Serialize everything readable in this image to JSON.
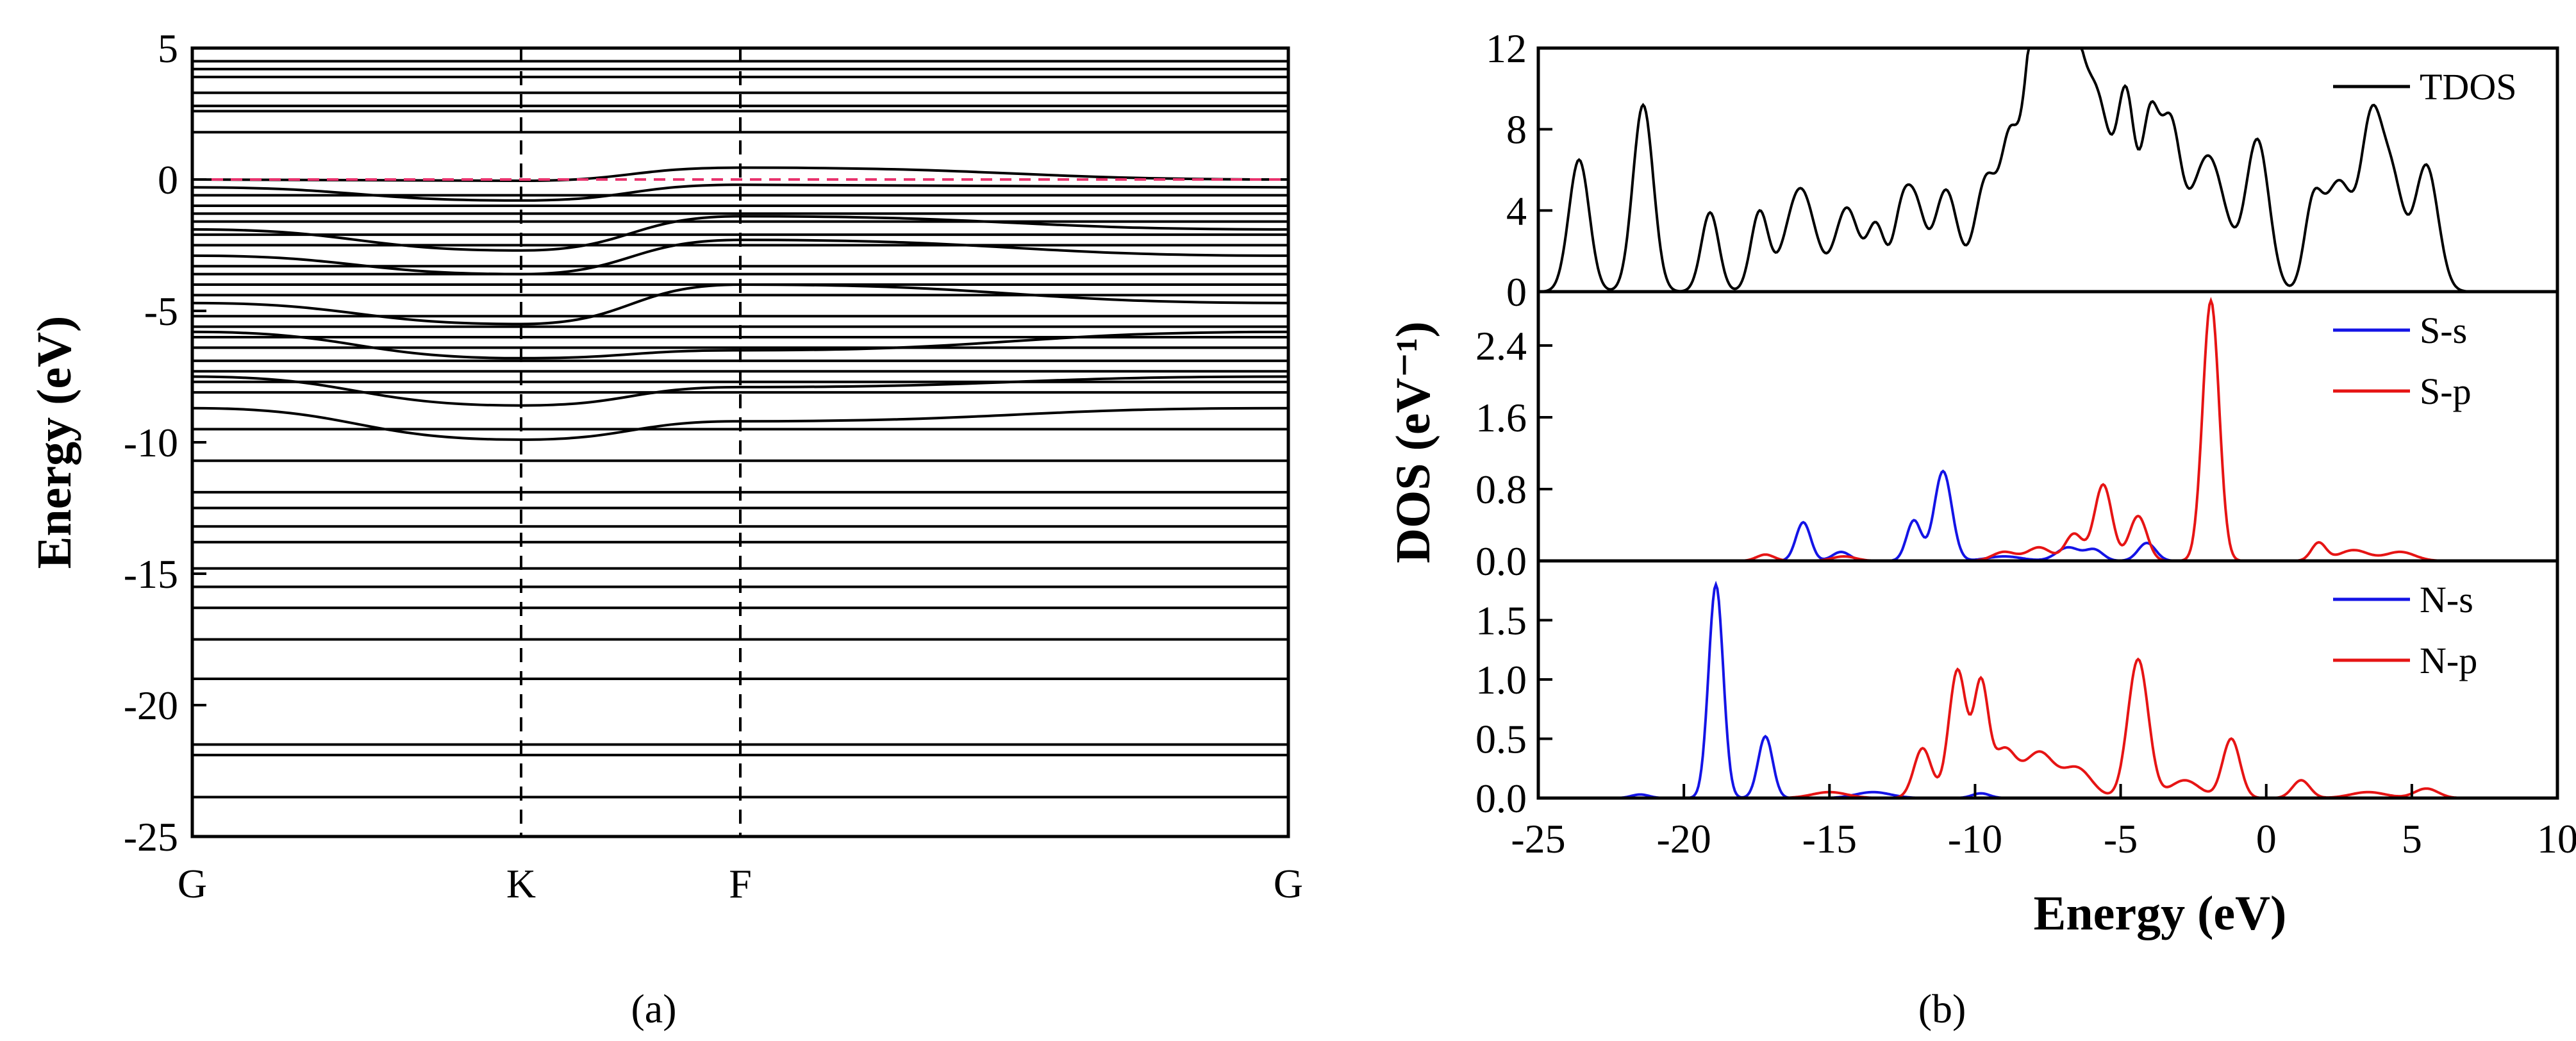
{
  "chart_data": [
    {
      "type": "line",
      "panel_label": "(a)",
      "title": "",
      "ylabel": "Energy (eV)",
      "xlabel": "",
      "ylim": [
        -25,
        5
      ],
      "y_ticks": [
        5,
        0,
        -5,
        -10,
        -15,
        -20,
        -25
      ],
      "k_points": [
        "G",
        "K",
        "F",
        "G"
      ],
      "k_positions": [
        0,
        0.3,
        0.5,
        1.0
      ],
      "fermi_level": 0,
      "fermi_line_color": "#e8336d",
      "band_color": "#000000",
      "bands_flat": [
        4.5,
        4.2,
        3.9,
        3.3,
        2.8,
        2.6,
        1.8,
        -0.6,
        -1.0,
        -1.3,
        -1.6,
        -2.1,
        -2.5,
        -3.3,
        -3.6,
        -4.0,
        -4.4,
        -5.2,
        -5.6,
        -6.0,
        -6.4,
        -6.9,
        -7.3,
        -7.7,
        -8.1,
        -9.5,
        -10.7,
        -11.9,
        -12.5,
        -13.2,
        -13.8,
        -14.8,
        -15.5,
        -16.3,
        -17.5,
        -19.0,
        -21.5,
        -21.9,
        -23.5
      ],
      "bands_dispersive": [
        {
          "values": [
            0.0,
            -0.05,
            0.45,
            0.0
          ]
        },
        {
          "values": [
            -0.3,
            -0.8,
            -0.2,
            -0.3
          ]
        },
        {
          "values": [
            -1.9,
            -2.7,
            -1.4,
            -1.9
          ]
        },
        {
          "values": [
            -2.9,
            -3.6,
            -2.3,
            -2.9
          ]
        },
        {
          "values": [
            -4.7,
            -5.5,
            -4.0,
            -4.7
          ]
        },
        {
          "values": [
            -5.8,
            -6.8,
            -6.5,
            -5.8
          ]
        },
        {
          "values": [
            -7.5,
            -8.6,
            -7.9,
            -7.5
          ]
        },
        {
          "values": [
            -8.7,
            -9.9,
            -9.2,
            -8.7
          ]
        }
      ]
    },
    {
      "type": "line",
      "panel_label": "(b)",
      "xlabel": "Energy (eV)",
      "ylabel": "DOS (eV⁻¹)",
      "xlim": [
        -25,
        10
      ],
      "x_ticks": [
        -25,
        -20,
        -15,
        -10,
        -5,
        0,
        5,
        10
      ],
      "subplots": [
        {
          "name": "TDOS panel",
          "ylim": [
            0,
            12
          ],
          "y_ticks": [
            0,
            4,
            8,
            12
          ],
          "series": [
            {
              "name": "TDOS",
              "color": "#000000",
              "peaks": [
                [
                  -23.6,
                  6.5,
                  0.35
                ],
                [
                  -21.4,
                  9.2,
                  0.35
                ],
                [
                  -19.1,
                  3.9,
                  0.3
                ],
                [
                  -17.4,
                  3.9,
                  0.3
                ],
                [
                  -16.0,
                  5.1,
                  0.5
                ],
                [
                  -14.4,
                  4.1,
                  0.4
                ],
                [
                  -13.4,
                  3.2,
                  0.3
                ],
                [
                  -12.5,
                  3.9,
                  0.3
                ],
                [
                  -12.0,
                  3.5,
                  0.3
                ],
                [
                  -11.0,
                  5.0,
                  0.4
                ],
                [
                  -9.6,
                  5.6,
                  0.4
                ],
                [
                  -8.8,
                  6.5,
                  0.3
                ],
                [
                  -8.0,
                  11.9,
                  0.35
                ],
                [
                  -7.3,
                  8.0,
                  0.4
                ],
                [
                  -6.7,
                  9.7,
                  0.4
                ],
                [
                  -5.8,
                  9.2,
                  0.5
                ],
                [
                  -4.8,
                  8.6,
                  0.3
                ],
                [
                  -4.0,
                  7.9,
                  0.3
                ],
                [
                  -3.3,
                  7.6,
                  0.35
                ],
                [
                  -2.0,
                  6.7,
                  0.6
                ],
                [
                  -0.3,
                  7.4,
                  0.4
                ],
                [
                  1.6,
                  3.8,
                  0.3
                ],
                [
                  2.5,
                  5.4,
                  0.5
                ],
                [
                  3.6,
                  7.4,
                  0.35
                ],
                [
                  4.3,
                  5.5,
                  0.4
                ],
                [
                  5.5,
                  6.2,
                  0.4
                ]
              ]
            }
          ],
          "legend": [
            "TDOS"
          ]
        },
        {
          "name": "S panel",
          "ylim": [
            0,
            3.0
          ],
          "y_ticks": [
            0.0,
            0.8,
            1.6,
            2.4
          ],
          "series": [
            {
              "name": "S-s",
              "color": "#1414e6",
              "peaks": [
                [
                  -15.9,
                  0.43,
                  0.25
                ],
                [
                  -14.6,
                  0.1,
                  0.3
                ],
                [
                  -12.1,
                  0.45,
                  0.25
                ],
                [
                  -11.1,
                  1.0,
                  0.3
                ],
                [
                  -6.8,
                  0.15,
                  0.4
                ],
                [
                  -5.9,
                  0.12,
                  0.3
                ],
                [
                  -4.1,
                  0.2,
                  0.3
                ],
                [
                  -9.0,
                  0.05,
                  0.6
                ]
              ]
            },
            {
              "name": "S-p",
              "color": "#e61414",
              "peaks": [
                [
                  -17.2,
                  0.07,
                  0.3
                ],
                [
                  -14.5,
                  0.05,
                  0.4
                ],
                [
                  -9.0,
                  0.1,
                  0.4
                ],
                [
                  -7.8,
                  0.15,
                  0.4
                ],
                [
                  -6.6,
                  0.3,
                  0.3
                ],
                [
                  -5.6,
                  0.85,
                  0.3
                ],
                [
                  -4.4,
                  0.5,
                  0.3
                ],
                [
                  -1.9,
                  2.9,
                  0.28
                ],
                [
                  1.8,
                  0.2,
                  0.25
                ],
                [
                  3.0,
                  0.12,
                  0.5
                ],
                [
                  4.6,
                  0.1,
                  0.5
                ]
              ]
            }
          ],
          "legend": [
            "S-s",
            "S-p"
          ]
        },
        {
          "name": "N panel",
          "ylim": [
            0,
            2.0
          ],
          "y_ticks": [
            0.0,
            0.5,
            1.0,
            1.5
          ],
          "series": [
            {
              "name": "N-s",
              "color": "#1414e6",
              "peaks": [
                [
                  -18.9,
                  1.8,
                  0.25
                ],
                [
                  -17.2,
                  0.52,
                  0.25
                ],
                [
                  -21.5,
                  0.03,
                  0.3
                ],
                [
                  -13.5,
                  0.05,
                  0.6
                ],
                [
                  -9.8,
                  0.04,
                  0.3
                ]
              ]
            },
            {
              "name": "N-p",
              "color": "#e61414",
              "peaks": [
                [
                  -11.8,
                  0.42,
                  0.3
                ],
                [
                  -10.6,
                  1.08,
                  0.3
                ],
                [
                  -9.8,
                  0.93,
                  0.25
                ],
                [
                  -9.0,
                  0.4,
                  0.4
                ],
                [
                  -7.8,
                  0.38,
                  0.5
                ],
                [
                  -6.5,
                  0.25,
                  0.5
                ],
                [
                  -4.4,
                  1.17,
                  0.35
                ],
                [
                  -2.8,
                  0.15,
                  0.5
                ],
                [
                  -1.2,
                  0.5,
                  0.3
                ],
                [
                  1.2,
                  0.15,
                  0.3
                ],
                [
                  3.5,
                  0.05,
                  0.6
                ],
                [
                  5.5,
                  0.08,
                  0.4
                ],
                [
                  -15.0,
                  0.05,
                  0.6
                ]
              ]
            }
          ],
          "legend": [
            "N-s",
            "N-p"
          ]
        }
      ]
    }
  ]
}
